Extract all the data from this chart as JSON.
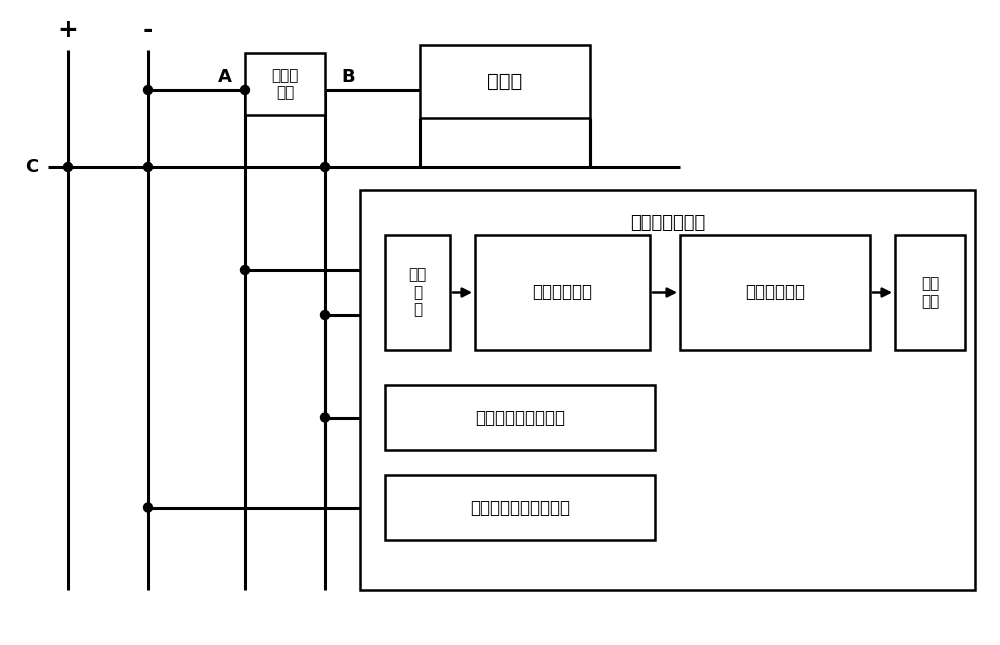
{
  "bg_color": "#ffffff",
  "line_color": "#000000",
  "box_color": "#ffffff",
  "labels": {
    "plus": "+",
    "minus": "-",
    "A": "A",
    "B": "B",
    "C": "C",
    "overcurrent": "过流保\n护器",
    "battery": "蓄电池",
    "fuse_detect": "熔丝断检测电路",
    "interface": "接口\n电\n路",
    "diff_amp": "差分放大电路",
    "signal_judge": "信号判别电路",
    "process_out": "处理\n输出",
    "battery_detect": "蓄电池电压检测电路",
    "dc_detect": "直流输出电压检测电路"
  }
}
